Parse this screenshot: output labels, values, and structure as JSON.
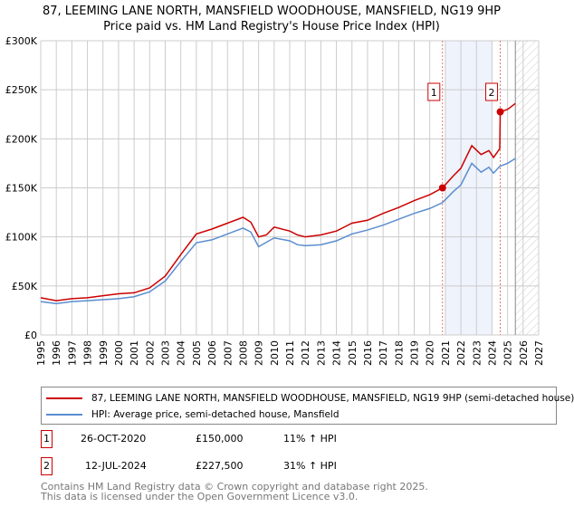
{
  "title": [
    "87, LEEMING LANE NORTH, MANSFIELD WOODHOUSE, MANSFIELD, NG19 9HP",
    "Price paid vs. HM Land Registry's House Price Index (HPI)"
  ],
  "chart_data": {
    "type": "line",
    "xlim": [
      1995,
      2027
    ],
    "ylim": [
      0,
      300000
    ],
    "yticks": [
      {
        "v": 0,
        "label": "£0"
      },
      {
        "v": 50000,
        "label": "£50K"
      },
      {
        "v": 100000,
        "label": "£100K"
      },
      {
        "v": 150000,
        "label": "£150K"
      },
      {
        "v": 200000,
        "label": "£200K"
      },
      {
        "v": 250000,
        "label": "£250K"
      },
      {
        "v": 300000,
        "label": "£300K"
      }
    ],
    "xticks": [
      "1995",
      "1996",
      "1997",
      "1998",
      "1999",
      "2000",
      "2001",
      "2002",
      "2003",
      "2004",
      "2005",
      "2006",
      "2007",
      "2008",
      "2009",
      "2010",
      "2011",
      "2012",
      "2013",
      "2014",
      "2015",
      "2016",
      "2017",
      "2018",
      "2019",
      "2020",
      "2021",
      "2022",
      "2023",
      "2024",
      "2025",
      "2026",
      "2027"
    ],
    "grid": true,
    "shaded_range": [
      2021,
      2024
    ],
    "forecast_from": 2025.5,
    "series": [
      {
        "name": "87, LEEMING LANE NORTH, MANSFIELD WOODHOUSE, MANSFIELD, NG19 9HP (semi-detached house)",
        "color": "#cc0000",
        "x": [
          1995,
          1996,
          1997,
          1998,
          1999,
          2000,
          2001,
          2002,
          2003,
          2004,
          2005,
          2006,
          2007,
          2008,
          2008.5,
          2009,
          2009.5,
          2010,
          2011,
          2011.5,
          2012,
          2013,
          2014,
          2015,
          2016,
          2017,
          2018,
          2019,
          2020,
          2020.82,
          2021.5,
          2022,
          2022.7,
          2023.3,
          2023.8,
          2024.1,
          2024.5,
          2024.53,
          2025,
          2025.5
        ],
        "y": [
          38000,
          35000,
          37000,
          38000,
          40000,
          42000,
          43000,
          48000,
          60000,
          82000,
          103000,
          108000,
          114000,
          120000,
          115000,
          100000,
          102000,
          110000,
          106000,
          102000,
          100000,
          102000,
          106000,
          114000,
          117000,
          124000,
          130000,
          137000,
          143000,
          150000,
          162000,
          170000,
          193000,
          184000,
          188000,
          181000,
          190000,
          227500,
          230000,
          236000
        ]
      },
      {
        "name": "HPI: Average price, semi-detached house, Mansfield",
        "color": "#5b8dd0",
        "x": [
          1995,
          1996,
          1997,
          1998,
          1999,
          2000,
          2001,
          2002,
          2003,
          2004,
          2005,
          2006,
          2007,
          2008,
          2008.5,
          2009,
          2010,
          2011,
          2011.5,
          2012,
          2013,
          2014,
          2015,
          2016,
          2017,
          2018,
          2019,
          2020,
          2020.82,
          2021.5,
          2022,
          2022.7,
          2023.3,
          2023.8,
          2024.1,
          2024.5,
          2025,
          2025.5
        ],
        "y": [
          34000,
          32000,
          34000,
          35000,
          36000,
          37000,
          39000,
          44000,
          55000,
          75000,
          94000,
          97000,
          103000,
          109000,
          105000,
          90000,
          99000,
          96000,
          92000,
          91000,
          92000,
          96000,
          103000,
          107000,
          112000,
          118000,
          124000,
          129000,
          135000,
          146000,
          153000,
          175000,
          166000,
          171000,
          165000,
          172000,
          175000,
          180000
        ]
      }
    ],
    "sales": [
      {
        "id": "1",
        "x": 2020.82,
        "y": 150000
      },
      {
        "id": "2",
        "x": 2024.53,
        "y": 227500
      }
    ]
  },
  "legend": [
    "87, LEEMING LANE NORTH, MANSFIELD WOODHOUSE, MANSFIELD, NG19 9HP (semi-detached house)",
    "HPI: Average price, semi-detached house, Mansfield"
  ],
  "table": [
    {
      "id": "1",
      "date": "26-OCT-2020",
      "price": "£150,000",
      "hpi": "11% ↑ HPI"
    },
    {
      "id": "2",
      "date": "12-JUL-2024",
      "price": "£227,500",
      "hpi": "31% ↑ HPI"
    }
  ],
  "footer": [
    "Contains HM Land Registry data © Crown copyright and database right 2025.",
    "This data is licensed under the Open Government Licence v3.0."
  ]
}
